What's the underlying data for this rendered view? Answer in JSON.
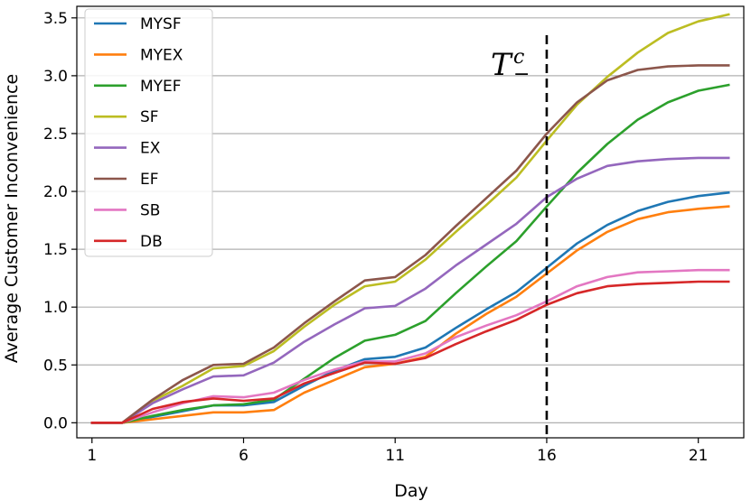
{
  "chart_data": {
    "type": "line",
    "title": "",
    "xlabel": "Day",
    "ylabel": "Average Customer Inconvenience",
    "xlim": [
      0.5,
      22.5
    ],
    "ylim": [
      -0.13,
      3.6
    ],
    "xticks": [
      1,
      6,
      11,
      16,
      21
    ],
    "yticks": [
      0.0,
      0.5,
      1.0,
      1.5,
      2.0,
      2.5,
      3.0,
      3.5
    ],
    "ytick_labels": [
      "0.0",
      "0.5",
      "1.0",
      "1.5",
      "2.0",
      "2.5",
      "3.0",
      "3.5"
    ],
    "grid": "horizontal",
    "legend_position": "top-left",
    "x": [
      1,
      2,
      3,
      4,
      5,
      6,
      7,
      8,
      9,
      10,
      11,
      12,
      13,
      14,
      15,
      16,
      17,
      18,
      19,
      20,
      21,
      22
    ],
    "series": [
      {
        "name": "MYSF",
        "color": "#1f77b4",
        "values": [
          0,
          0,
          0.05,
          0.1,
          0.15,
          0.15,
          0.18,
          0.32,
          0.45,
          0.55,
          0.57,
          0.65,
          0.82,
          0.98,
          1.13,
          1.34,
          1.55,
          1.71,
          1.83,
          1.91,
          1.96,
          1.99
        ]
      },
      {
        "name": "MYEX",
        "color": "#ff7f0e",
        "values": [
          0,
          0,
          0.03,
          0.06,
          0.09,
          0.09,
          0.11,
          0.26,
          0.37,
          0.48,
          0.51,
          0.57,
          0.77,
          0.94,
          1.09,
          1.29,
          1.49,
          1.65,
          1.76,
          1.82,
          1.85,
          1.87
        ]
      },
      {
        "name": "MYEF",
        "color": "#2ca02c",
        "values": [
          0,
          0,
          0.06,
          0.11,
          0.15,
          0.16,
          0.2,
          0.38,
          0.56,
          0.71,
          0.76,
          0.88,
          1.12,
          1.35,
          1.57,
          1.87,
          2.16,
          2.41,
          2.62,
          2.77,
          2.87,
          2.92
        ]
      },
      {
        "name": "SF",
        "color": "#bcbd22",
        "values": [
          0,
          0,
          0.19,
          0.32,
          0.47,
          0.49,
          0.62,
          0.83,
          1.02,
          1.18,
          1.22,
          1.41,
          1.65,
          1.88,
          2.12,
          2.44,
          2.75,
          2.99,
          3.2,
          3.37,
          3.47,
          3.53
        ]
      },
      {
        "name": "EX",
        "color": "#9467bd",
        "values": [
          0,
          0,
          0.17,
          0.29,
          0.4,
          0.41,
          0.52,
          0.7,
          0.85,
          0.99,
          1.01,
          1.16,
          1.36,
          1.54,
          1.72,
          1.95,
          2.11,
          2.22,
          2.26,
          2.28,
          2.29,
          2.29
        ]
      },
      {
        "name": "EF",
        "color": "#8c564b",
        "values": [
          0,
          0,
          0.2,
          0.37,
          0.5,
          0.51,
          0.65,
          0.86,
          1.05,
          1.23,
          1.26,
          1.45,
          1.7,
          1.94,
          2.18,
          2.5,
          2.77,
          2.96,
          3.05,
          3.08,
          3.09,
          3.09
        ]
      },
      {
        "name": "SB",
        "color": "#e377c2",
        "values": [
          0,
          0,
          0.09,
          0.17,
          0.23,
          0.22,
          0.26,
          0.37,
          0.46,
          0.53,
          0.53,
          0.6,
          0.74,
          0.84,
          0.93,
          1.05,
          1.18,
          1.26,
          1.3,
          1.31,
          1.32,
          1.32
        ]
      },
      {
        "name": "DB",
        "color": "#d62728",
        "values": [
          0,
          0,
          0.12,
          0.18,
          0.21,
          0.19,
          0.21,
          0.34,
          0.43,
          0.52,
          0.51,
          0.56,
          0.68,
          0.79,
          0.89,
          1.02,
          1.12,
          1.18,
          1.2,
          1.21,
          1.22,
          1.22
        ]
      }
    ],
    "vline": {
      "x": 16,
      "style": "dashed",
      "color": "#000000"
    },
    "annotation": {
      "base": "T",
      "superscript": "c",
      "subscript": "−"
    }
  }
}
